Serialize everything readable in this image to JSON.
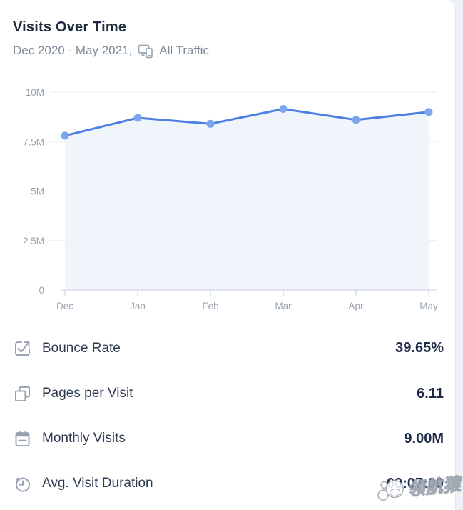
{
  "header": {
    "title": "Visits Over Time",
    "date_range": "Dec 2020 - May 2021,",
    "traffic_label": "All Traffic"
  },
  "chart_data": {
    "type": "line",
    "title": "Visits Over Time",
    "x": [
      "Dec",
      "Jan",
      "Feb",
      "Mar",
      "Apr",
      "May"
    ],
    "series": [
      {
        "name": "Monthly Visits (millions)",
        "values": [
          7.8,
          8.7,
          8.4,
          9.15,
          8.6,
          9.0
        ]
      }
    ],
    "unit": "M",
    "ylim": [
      0,
      10
    ],
    "y_tick_values": [
      0,
      2.5,
      5,
      7.5,
      10
    ],
    "y_tick_labels": [
      "0",
      "2.5M",
      "5M",
      "7.5M",
      "10M"
    ],
    "grid": true,
    "legend": "none",
    "colors": {
      "line": "#4d7fe3",
      "marker": "#79a6ed",
      "area": "#f0f5fc",
      "grid": "#e8ecf1",
      "axis": "#c9d1da",
      "tick_text": "#9aa4b0"
    }
  },
  "stats": [
    {
      "icon": "bounce-rate-icon",
      "label": "Bounce Rate",
      "value": "39.65%"
    },
    {
      "icon": "pages-per-visit-icon",
      "label": "Pages per Visit",
      "value": "6.11"
    },
    {
      "icon": "monthly-visits-icon",
      "label": "Monthly Visits",
      "value": "9.00M"
    },
    {
      "icon": "visit-duration-icon",
      "label": "Avg. Visit Duration",
      "value": "00:07:00"
    }
  ],
  "watermark": {
    "text": "领航猿"
  }
}
